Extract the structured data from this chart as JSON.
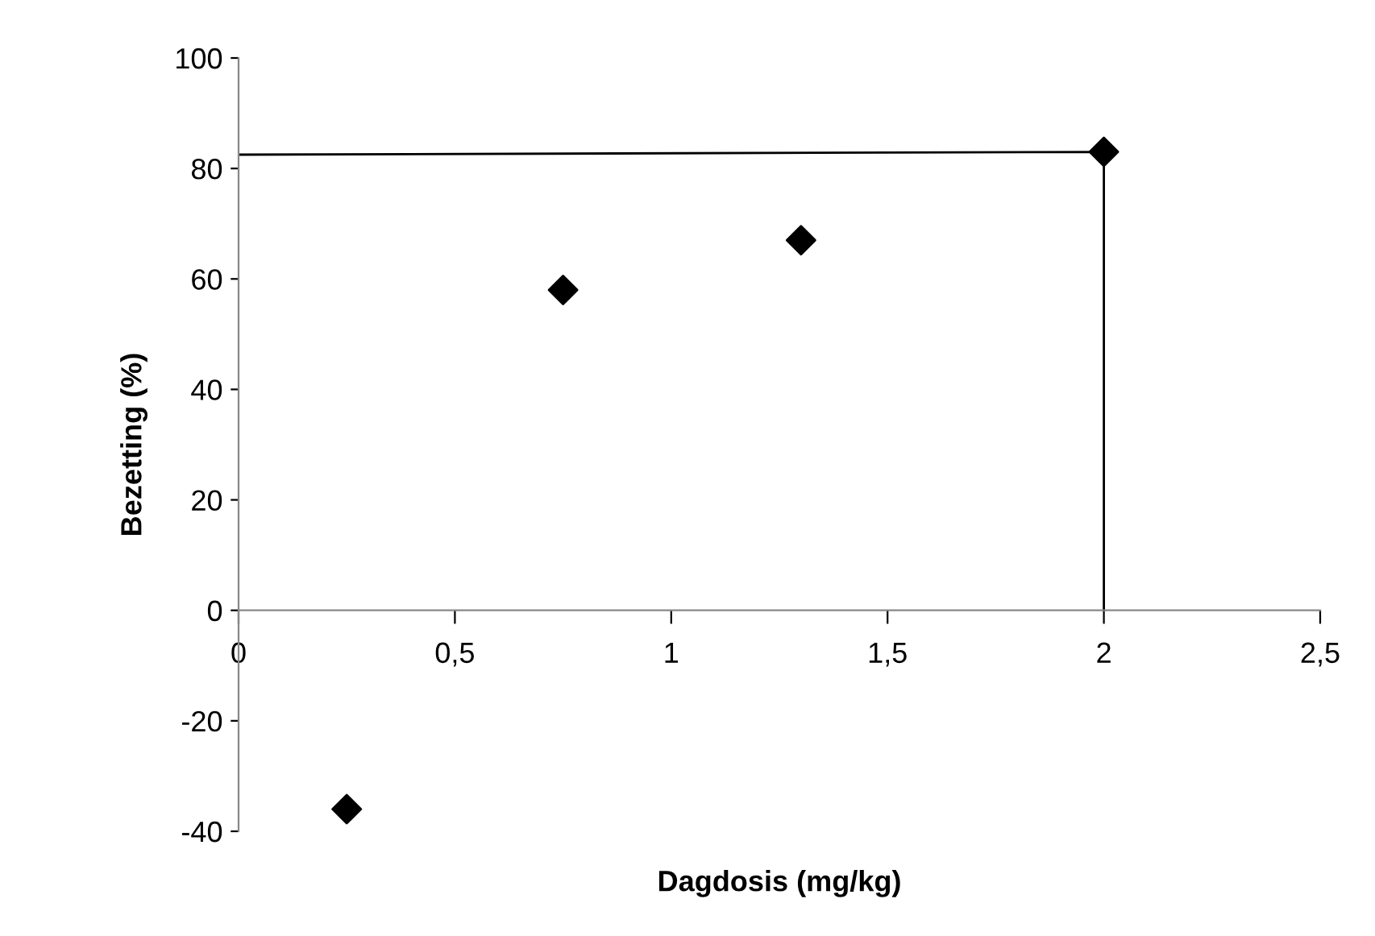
{
  "chart_data": {
    "type": "scatter",
    "xlabel": "Dagdosis (mg/kg)",
    "ylabel": "Bezetting (%)",
    "xlim": [
      0,
      2.5
    ],
    "xticks": [
      {
        "value": 0,
        "label": "0"
      },
      {
        "value": 0.5,
        "label": "0,5"
      },
      {
        "value": 1,
        "label": "1"
      },
      {
        "value": 1.5,
        "label": "1,5"
      },
      {
        "value": 2,
        "label": "2"
      },
      {
        "value": 2.5,
        "label": "2,5"
      }
    ],
    "ylim": [
      -40,
      100
    ],
    "yticks": [
      -40,
      -20,
      0,
      20,
      40,
      60,
      80,
      100
    ],
    "grid": false,
    "legend": false,
    "series": [
      {
        "color": "#000000",
        "marker": "diamond",
        "x": [
          0.25,
          0.75,
          1.3,
          2
        ],
        "values": [
          -36,
          58,
          67,
          83
        ]
      },
      {
        "type": "line",
        "color": "#000000",
        "marker": "none",
        "line_style": "solid",
        "x": [
          0,
          2,
          2
        ],
        "values": [
          82.5,
          83,
          0
        ]
      }
    ]
  }
}
